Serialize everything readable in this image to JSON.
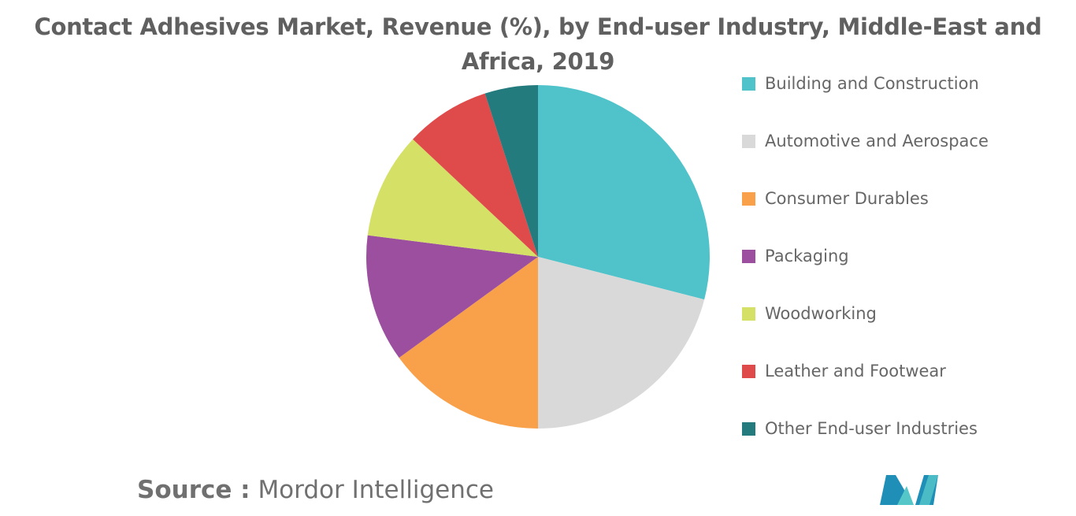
{
  "chart_data": {
    "type": "pie",
    "title": "Contact Adhesives Market, Revenue (%), by End-user Industry, Middle-East and Africa, 2019",
    "categories": [
      "Building and Construction",
      "Automotive and Aerospace",
      "Consumer Durables",
      "Packaging",
      "Woodworking",
      "Leather and Footwear",
      "Other End-user Industries"
    ],
    "values": [
      29,
      21,
      15,
      12,
      10,
      8,
      5
    ],
    "colors": [
      "#4fc3c9",
      "#d9d9d9",
      "#f9a04a",
      "#9b4f9e",
      "#d4e066",
      "#df4a4a",
      "#237b7d"
    ],
    "legend_position": "right",
    "start_angle_deg": 0,
    "direction": "clockwise"
  },
  "footer": {
    "source_label": "Source :",
    "source_value": "Mordor Intelligence"
  },
  "logo": {
    "icon": "mordor-intelligence-logo-icon",
    "colors": [
      "#1f8fb8",
      "#56c7c8"
    ]
  }
}
